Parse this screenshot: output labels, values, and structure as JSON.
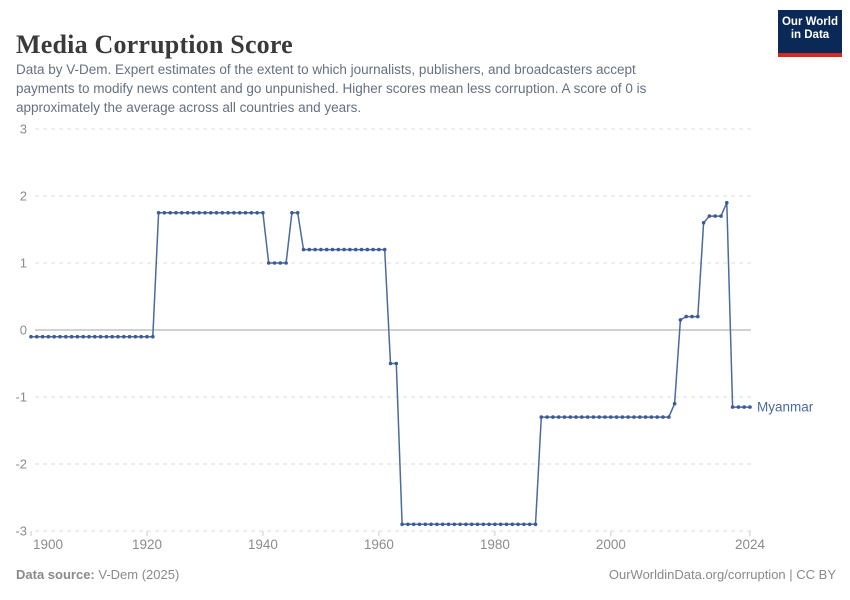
{
  "header": {
    "title": "Media Corruption Score",
    "subtitle_lines": [
      "Data by V-Dem. Expert estimates of the extent to which journalists, publishers, and broadcasters accept",
      "payments to modify news content and go unpunished. Higher scores mean less corruption. A score of 0 is",
      "approximately the average across all countries and years."
    ],
    "logo": {
      "line1": "Our World",
      "line2": "in Data"
    }
  },
  "footer": {
    "source_label": "Data source:",
    "source_value": " V-Dem (2025)",
    "right_text": "OurWorldinData.org/corruption | CC BY"
  },
  "colors": {
    "line": "#4C6A9C",
    "dot": "#3A5B96",
    "entity_label": "#4C6A9C",
    "grid": "#DDDDDD",
    "zero_line": "#A3A3A3",
    "tick": "#C9C9C9",
    "axis_text": "#8C8C8C",
    "logo_bg": "#0A2956",
    "logo_red": "#D42B21"
  },
  "chart_data": {
    "type": "line",
    "title": "Media Corruption Score",
    "xlabel": "",
    "ylabel": "",
    "x_range": [
      1900,
      2024
    ],
    "ylim": [
      -3,
      3
    ],
    "yticks": [
      3,
      2,
      1,
      0,
      -1,
      -2,
      -3
    ],
    "xticks": [
      1900,
      1920,
      1940,
      1960,
      1980,
      2000,
      2024
    ],
    "grid": "horizontal-dashed",
    "legend_position": "end-of-line-label",
    "series": [
      {
        "name": "Myanmar",
        "color": "#4C6A9C",
        "points": [
          [
            1900,
            -0.1
          ],
          [
            1901,
            -0.1
          ],
          [
            1902,
            -0.1
          ],
          [
            1903,
            -0.1
          ],
          [
            1904,
            -0.1
          ],
          [
            1905,
            -0.1
          ],
          [
            1906,
            -0.1
          ],
          [
            1907,
            -0.1
          ],
          [
            1908,
            -0.1
          ],
          [
            1909,
            -0.1
          ],
          [
            1910,
            -0.1
          ],
          [
            1911,
            -0.1
          ],
          [
            1912,
            -0.1
          ],
          [
            1913,
            -0.1
          ],
          [
            1914,
            -0.1
          ],
          [
            1915,
            -0.1
          ],
          [
            1916,
            -0.1
          ],
          [
            1917,
            -0.1
          ],
          [
            1918,
            -0.1
          ],
          [
            1919,
            -0.1
          ],
          [
            1920,
            -0.1
          ],
          [
            1921,
            -0.1
          ],
          [
            1922,
            1.75
          ],
          [
            1923,
            1.75
          ],
          [
            1924,
            1.75
          ],
          [
            1925,
            1.75
          ],
          [
            1926,
            1.75
          ],
          [
            1927,
            1.75
          ],
          [
            1928,
            1.75
          ],
          [
            1929,
            1.75
          ],
          [
            1930,
            1.75
          ],
          [
            1931,
            1.75
          ],
          [
            1932,
            1.75
          ],
          [
            1933,
            1.75
          ],
          [
            1934,
            1.75
          ],
          [
            1935,
            1.75
          ],
          [
            1936,
            1.75
          ],
          [
            1937,
            1.75
          ],
          [
            1938,
            1.75
          ],
          [
            1939,
            1.75
          ],
          [
            1940,
            1.75
          ],
          [
            1941,
            1.0
          ],
          [
            1942,
            1.0
          ],
          [
            1943,
            1.0
          ],
          [
            1944,
            1.0
          ],
          [
            1945,
            1.75
          ],
          [
            1946,
            1.75
          ],
          [
            1947,
            1.2
          ],
          [
            1948,
            1.2
          ],
          [
            1949,
            1.2
          ],
          [
            1950,
            1.2
          ],
          [
            1951,
            1.2
          ],
          [
            1952,
            1.2
          ],
          [
            1953,
            1.2
          ],
          [
            1954,
            1.2
          ],
          [
            1955,
            1.2
          ],
          [
            1956,
            1.2
          ],
          [
            1957,
            1.2
          ],
          [
            1958,
            1.2
          ],
          [
            1959,
            1.2
          ],
          [
            1960,
            1.2
          ],
          [
            1961,
            1.2
          ],
          [
            1962,
            -0.5
          ],
          [
            1963,
            -0.5
          ],
          [
            1964,
            -2.9
          ],
          [
            1965,
            -2.9
          ],
          [
            1966,
            -2.9
          ],
          [
            1967,
            -2.9
          ],
          [
            1968,
            -2.9
          ],
          [
            1969,
            -2.9
          ],
          [
            1970,
            -2.9
          ],
          [
            1971,
            -2.9
          ],
          [
            1972,
            -2.9
          ],
          [
            1973,
            -2.9
          ],
          [
            1974,
            -2.9
          ],
          [
            1975,
            -2.9
          ],
          [
            1976,
            -2.9
          ],
          [
            1977,
            -2.9
          ],
          [
            1978,
            -2.9
          ],
          [
            1979,
            -2.9
          ],
          [
            1980,
            -2.9
          ],
          [
            1981,
            -2.9
          ],
          [
            1982,
            -2.9
          ],
          [
            1983,
            -2.9
          ],
          [
            1984,
            -2.9
          ],
          [
            1985,
            -2.9
          ],
          [
            1986,
            -2.9
          ],
          [
            1987,
            -2.9
          ],
          [
            1988,
            -1.3
          ],
          [
            1989,
            -1.3
          ],
          [
            1990,
            -1.3
          ],
          [
            1991,
            -1.3
          ],
          [
            1992,
            -1.3
          ],
          [
            1993,
            -1.3
          ],
          [
            1994,
            -1.3
          ],
          [
            1995,
            -1.3
          ],
          [
            1996,
            -1.3
          ],
          [
            1997,
            -1.3
          ],
          [
            1998,
            -1.3
          ],
          [
            1999,
            -1.3
          ],
          [
            2000,
            -1.3
          ],
          [
            2001,
            -1.3
          ],
          [
            2002,
            -1.3
          ],
          [
            2003,
            -1.3
          ],
          [
            2004,
            -1.3
          ],
          [
            2005,
            -1.3
          ],
          [
            2006,
            -1.3
          ],
          [
            2007,
            -1.3
          ],
          [
            2008,
            -1.3
          ],
          [
            2009,
            -1.3
          ],
          [
            2010,
            -1.3
          ],
          [
            2011,
            -1.1
          ],
          [
            2012,
            0.15
          ],
          [
            2013,
            0.2
          ],
          [
            2014,
            0.2
          ],
          [
            2015,
            0.2
          ],
          [
            2016,
            1.6
          ],
          [
            2017,
            1.7
          ],
          [
            2018,
            1.7
          ],
          [
            2019,
            1.7
          ],
          [
            2020,
            1.9
          ],
          [
            2021,
            -1.15
          ],
          [
            2022,
            -1.15
          ],
          [
            2023,
            -1.15
          ],
          [
            2024,
            -1.15
          ]
        ]
      }
    ]
  }
}
